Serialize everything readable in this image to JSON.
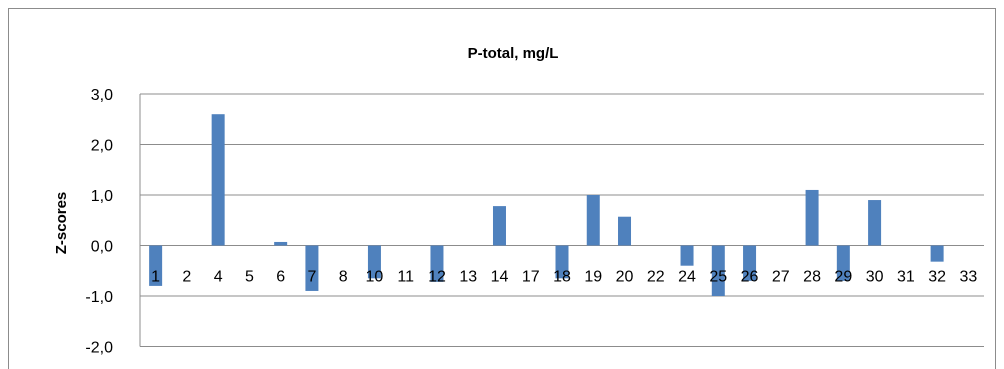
{
  "chart_data": {
    "type": "bar",
    "title": "P-total, mg/L",
    "xlabel": "",
    "ylabel": "Z-scores",
    "ylim": [
      -2.0,
      3.0
    ],
    "yticks": [
      "3,0",
      "2,0",
      "1,0",
      "0,0",
      "-1,0",
      "-2,0"
    ],
    "ytick_values": [
      3,
      2,
      1,
      0,
      -1,
      -2
    ],
    "categories": [
      "1",
      "2",
      "4",
      "5",
      "6",
      "7",
      "8",
      "10",
      "11",
      "12",
      "13",
      "14",
      "17",
      "18",
      "19",
      "20",
      "22",
      "24",
      "25",
      "26",
      "27",
      "28",
      "29",
      "30",
      "31",
      "32",
      "33"
    ],
    "values": [
      -0.8,
      0,
      2.6,
      0,
      0.07,
      -0.9,
      0,
      -0.65,
      0,
      -0.72,
      0,
      0.78,
      0,
      -0.65,
      1.0,
      0.57,
      0,
      -0.4,
      -1.0,
      -0.7,
      0,
      1.1,
      -0.7,
      0.9,
      0,
      -0.32,
      0
    ],
    "grid": true,
    "legend": "none",
    "bar_color": "#4f81bd",
    "grid_color": "#8c8c8c"
  }
}
